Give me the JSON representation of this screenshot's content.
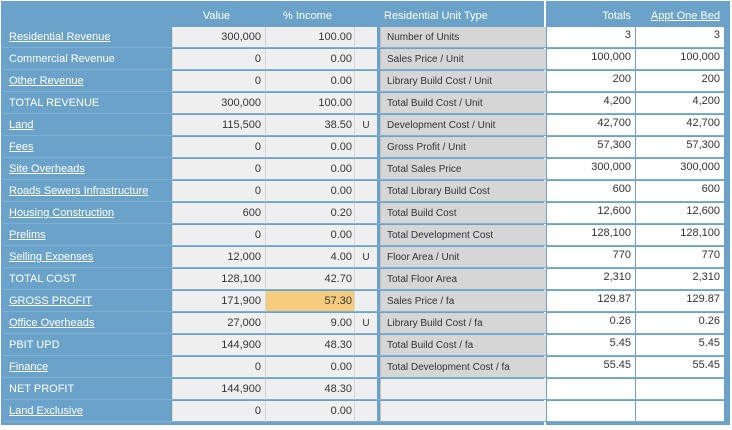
{
  "headers": {
    "value": "Value",
    "income": "% Income",
    "unit_type": "Residential Unit Type",
    "totals": "Totals",
    "appt": "Appt One Bed"
  },
  "rows": [
    {
      "label": "Residential Revenue",
      "link": true,
      "value": "300,000",
      "pct": "100.00",
      "flag": "",
      "type": "Number of Units",
      "total": "3",
      "appt": "3"
    },
    {
      "label": "Commercial Revenue",
      "link": false,
      "value": "0",
      "pct": "0.00",
      "flag": "",
      "type": "Sales Price / Unit",
      "total": "100,000",
      "appt": "100,000"
    },
    {
      "label": "Other Revenue",
      "link": true,
      "value": "0",
      "pct": "0.00",
      "flag": "",
      "type": "Library Build Cost / Unit",
      "total": "200",
      "appt": "200"
    },
    {
      "label": "TOTAL REVENUE",
      "link": false,
      "value": "300,000",
      "pct": "100.00",
      "flag": "",
      "type": "Total Build Cost / Unit",
      "total": "4,200",
      "appt": "4,200"
    },
    {
      "label": "Land",
      "link": true,
      "value": "115,500",
      "pct": "38.50",
      "flag": "U",
      "type": "Development Cost / Unit",
      "total": "42,700",
      "appt": "42,700"
    },
    {
      "label": "Fees",
      "link": true,
      "value": "0",
      "pct": "0.00",
      "flag": "",
      "type": "Gross Profit / Unit",
      "total": "57,300",
      "appt": "57,300"
    },
    {
      "label": "Site Overheads",
      "link": true,
      "value": "0",
      "pct": "0.00",
      "flag": "",
      "type": "Total Sales Price",
      "total": "300,000",
      "appt": "300,000"
    },
    {
      "label": "Roads Sewers Infrastructure",
      "link": true,
      "value": "0",
      "pct": "0.00",
      "flag": "",
      "type": "Total Library Build Cost",
      "total": "600",
      "appt": "600"
    },
    {
      "label": "Housing Construction",
      "link": true,
      "value": "600",
      "pct": "0.20",
      "flag": "",
      "type": "Total Build Cost",
      "total": "12,600",
      "appt": "12,600"
    },
    {
      "label": "Prelims",
      "link": true,
      "value": "0",
      "pct": "0.00",
      "flag": "",
      "type": "Total Development Cost",
      "total": "128,100",
      "appt": "128,100"
    },
    {
      "label": "Selling Expenses",
      "link": true,
      "value": "12,000",
      "pct": "4.00",
      "flag": "U",
      "type": "Floor Area / Unit",
      "total": "770",
      "appt": "770"
    },
    {
      "label": "TOTAL COST",
      "link": false,
      "value": "128,100",
      "pct": "42.70",
      "flag": "",
      "type": "Total Floor Area",
      "total": "2,310",
      "appt": "2,310"
    },
    {
      "label": "GROSS PROFIT",
      "link": true,
      "value": "171,900",
      "pct": "57.30",
      "flag": "",
      "type": "Sales Price / fa",
      "total": "129.87",
      "appt": "129.87",
      "highlight": true
    },
    {
      "label": "Office Overheads",
      "link": true,
      "value": "27,000",
      "pct": "9.00",
      "flag": "U",
      "type": "Library Build Cost / fa",
      "total": "0.26",
      "appt": "0.26"
    },
    {
      "label": "PBIT UPD",
      "link": false,
      "value": "144,900",
      "pct": "48.30",
      "flag": "",
      "type": "Total Build Cost / fa",
      "total": "5.45",
      "appt": "5.45"
    },
    {
      "label": "Finance",
      "link": true,
      "value": "0",
      "pct": "0.00",
      "flag": "",
      "type": "Total Development Cost / fa",
      "total": "55.45",
      "appt": "55.45"
    },
    {
      "label": "NET PROFIT",
      "link": false,
      "value": "144,900",
      "pct": "48.30",
      "flag": "",
      "type": "",
      "total": "",
      "appt": ""
    },
    {
      "label": "Land Exclusive",
      "link": true,
      "value": "0",
      "pct": "0.00",
      "flag": "",
      "type": "",
      "total": "",
      "appt": ""
    }
  ],
  "colors": {
    "panel": "#6aa2c9",
    "cell": "#efefef",
    "type_cell": "#d6d6d6",
    "highlight": "#f5cc7e"
  }
}
